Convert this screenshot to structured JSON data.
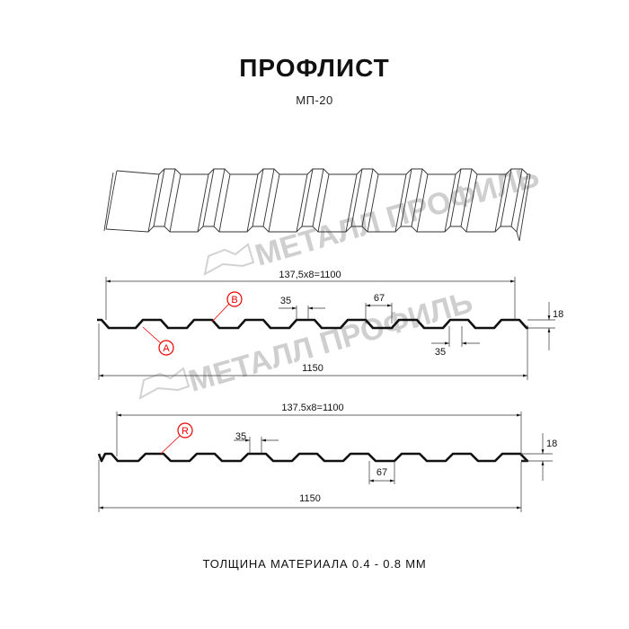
{
  "header": {
    "title": "ПРОФЛИСТ",
    "subtitle": "МП-20"
  },
  "watermark": {
    "text": "МЕТАЛЛ ПРОФИЛЬ",
    "color": "#cfcfcf"
  },
  "profile_1": {
    "pitch_label": "137,5x8=1100",
    "total_label": "1150",
    "height_label": "18",
    "top_flat_label": "35",
    "bottom_flat_label": "35",
    "rib_label": "67",
    "callouts": [
      "B",
      "A"
    ]
  },
  "profile_2": {
    "pitch_label": "137.5x8=1100",
    "total_label": "1150",
    "height_label": "18",
    "top_flat_label": "35",
    "rib_label": "67",
    "callouts": [
      "R"
    ]
  },
  "callout_color": "#e00000",
  "footer": {
    "thickness_note": "ТОЛЩИНА МАТЕРИАЛА 0.4 - 0.8 ММ"
  }
}
